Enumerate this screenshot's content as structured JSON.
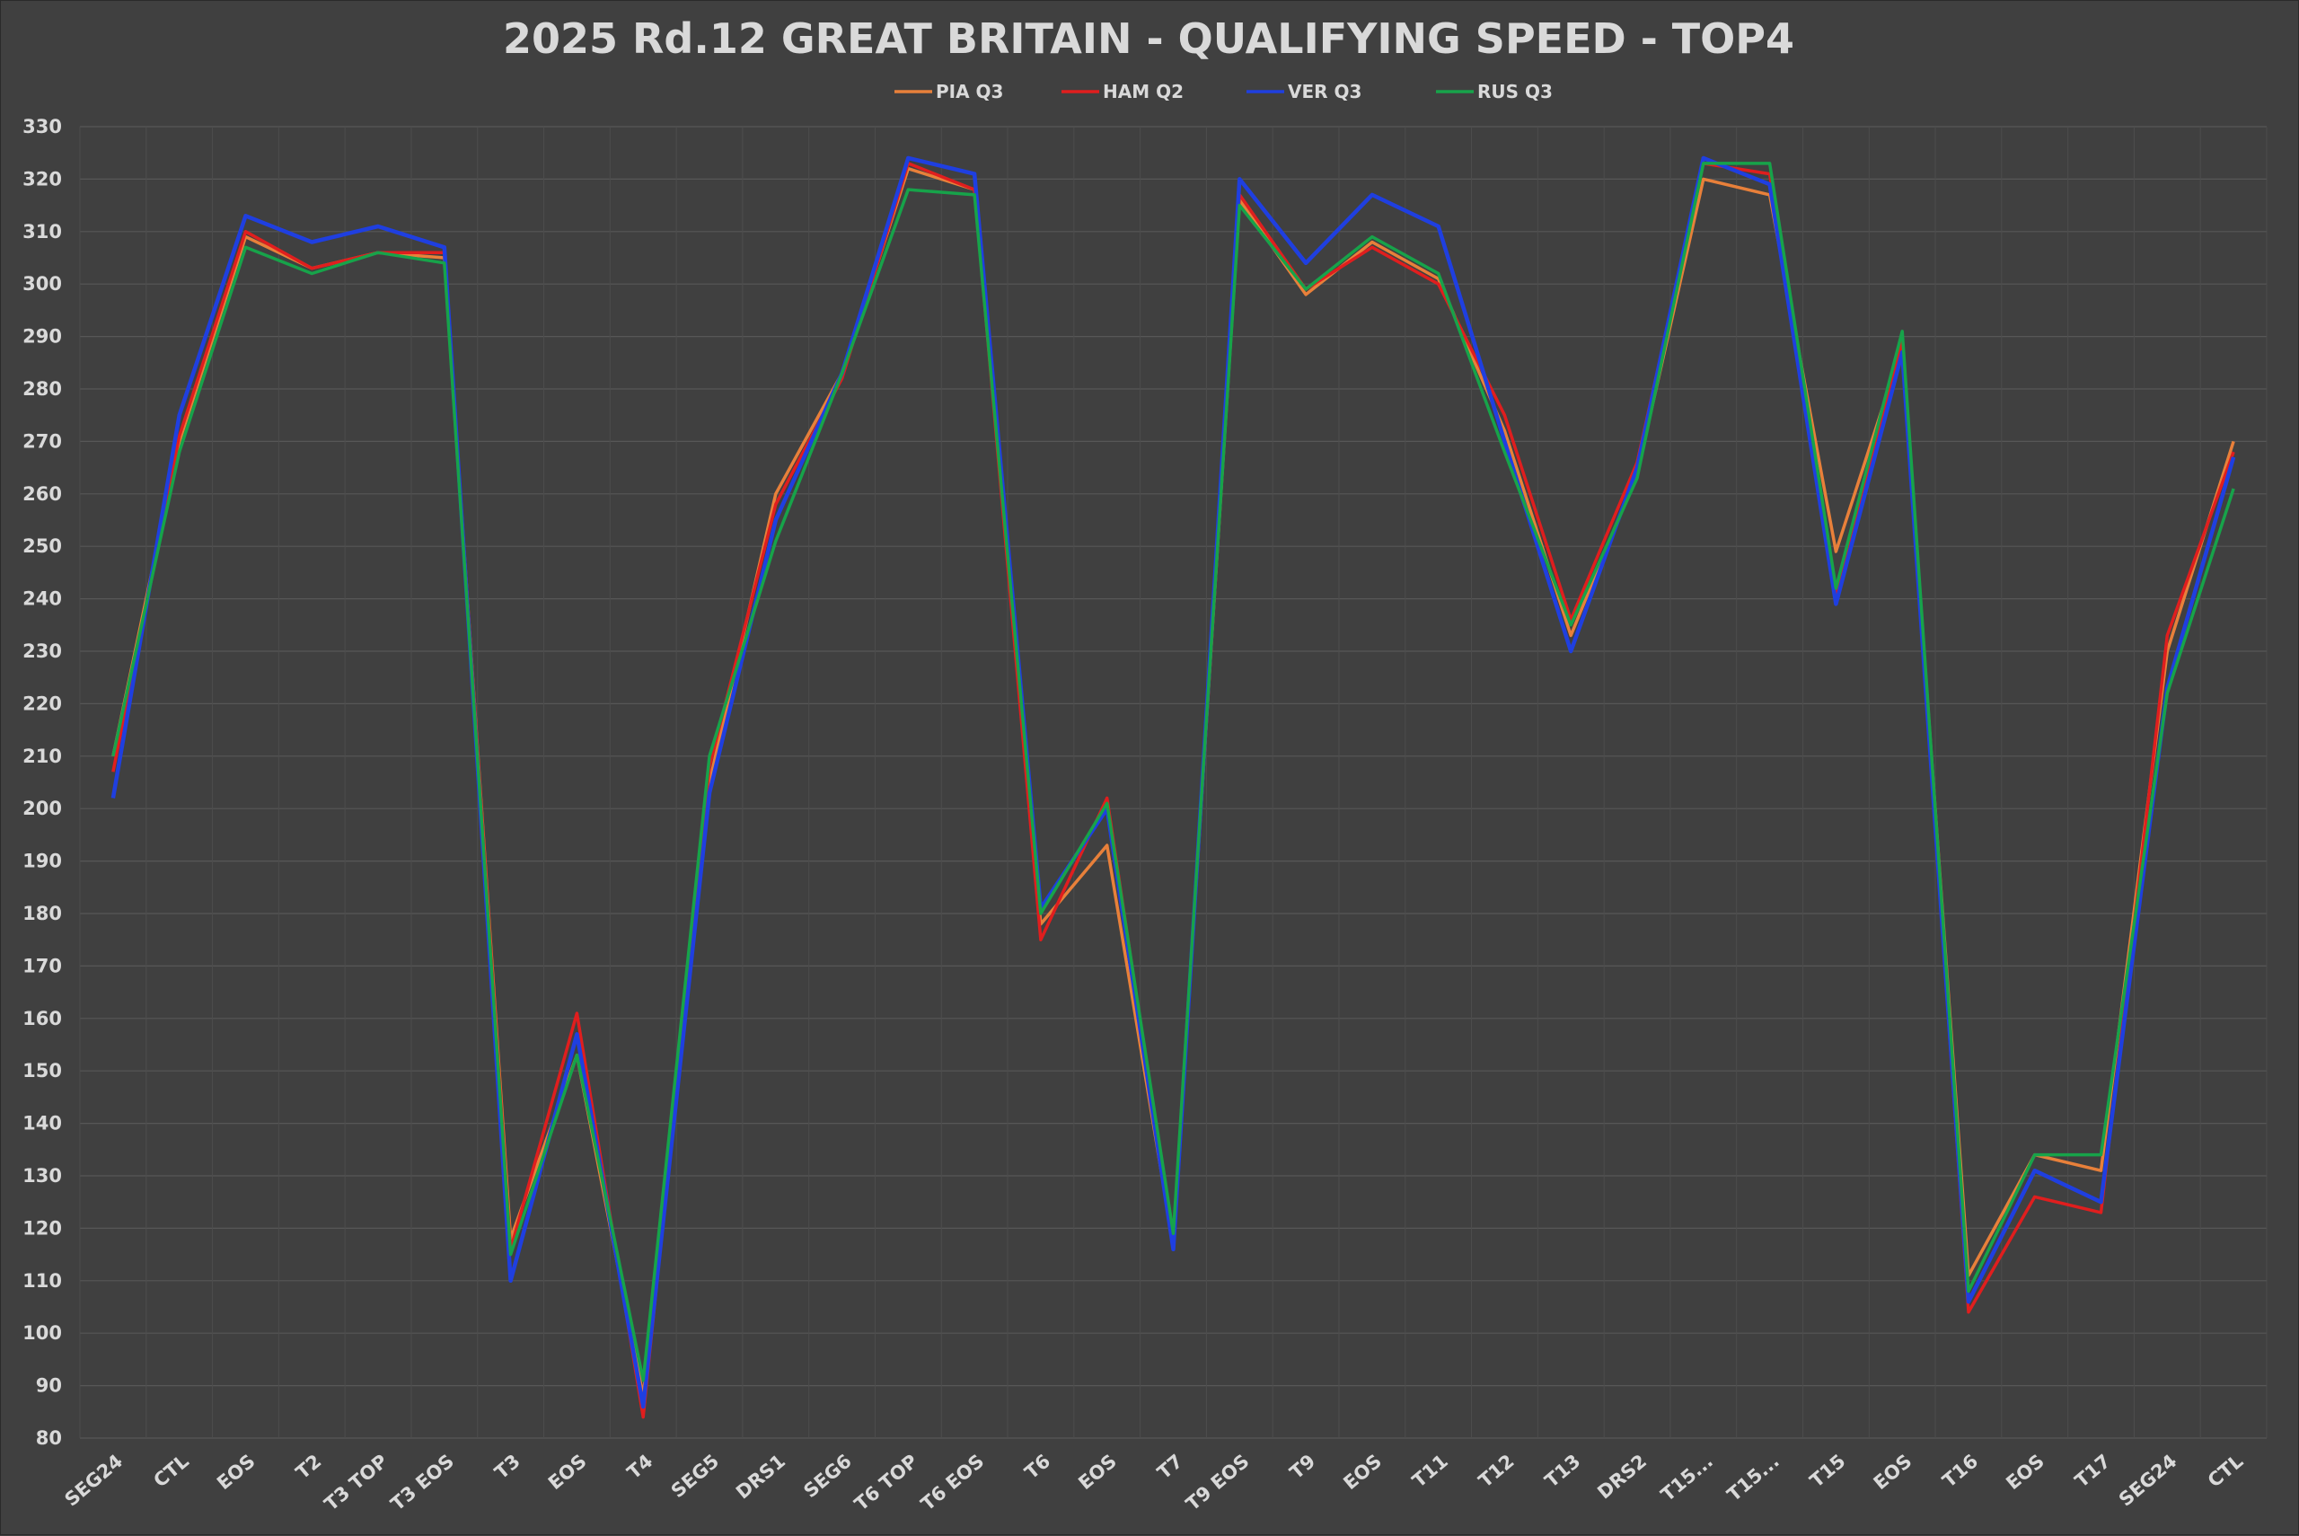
{
  "chart_data": {
    "type": "line",
    "title": "2025 Rd.12 GREAT BRITAIN - QUALIFYING SPEED - TOP4",
    "xlabel": "",
    "ylabel": "",
    "ylim": [
      80,
      330
    ],
    "yticks": [
      80,
      90,
      100,
      110,
      120,
      130,
      140,
      150,
      160,
      170,
      180,
      190,
      200,
      210,
      220,
      230,
      240,
      250,
      260,
      270,
      280,
      290,
      300,
      310,
      320,
      330
    ],
    "grid": true,
    "legend": "top-center",
    "categories": [
      "SEG24",
      "CTL",
      "EOS",
      "T2",
      "T3 TOP",
      "T3 EOS",
      "T3",
      "EOS",
      "T4",
      "SEG5",
      "DRS1",
      "SEG6",
      "T6 TOP",
      "T6 EOS",
      "T6",
      "EOS",
      "T7",
      "T9 EOS",
      "T9",
      "EOS",
      "T11",
      "T12",
      "T13",
      "DRS2",
      "T15...",
      "T15...",
      "T15",
      "EOS",
      "T16",
      "EOS",
      "T17",
      "SEG24",
      "CTL"
    ],
    "series": [
      {
        "name": "PIA Q3",
        "color": "#e8803a",
        "values": [
          210,
          270,
          309,
          303,
          306,
          305,
          118,
          153,
          88,
          205,
          260,
          283,
          322,
          318,
          178,
          193,
          117,
          316,
          298,
          308,
          301,
          272,
          233,
          264,
          320,
          317,
          249,
          288,
          111,
          134,
          131,
          230,
          270
        ]
      },
      {
        "name": "HAM Q2",
        "color": "#e01e1e",
        "values": [
          207,
          271,
          310,
          303,
          306,
          306,
          116,
          161,
          84,
          208,
          258,
          282,
          323,
          318,
          175,
          202,
          117,
          317,
          299,
          307,
          300,
          275,
          236,
          266,
          323,
          321,
          241,
          289,
          104,
          126,
          123,
          233,
          268
        ]
      },
      {
        "name": "VER Q3",
        "color": "#1f3fe0",
        "values": [
          202,
          275,
          313,
          308,
          311,
          307,
          110,
          157,
          86,
          203,
          255,
          283,
          324,
          321,
          181,
          200,
          116,
          320,
          304,
          317,
          311,
          270,
          230,
          265,
          324,
          319,
          239,
          287,
          106,
          131,
          125,
          223,
          267
        ]
      },
      {
        "name": "RUS Q3",
        "color": "#17a34a",
        "values": [
          210,
          268,
          307,
          302,
          306,
          304,
          115,
          153,
          91,
          210,
          251,
          283,
          318,
          317,
          180,
          201,
          119,
          315,
          299,
          309,
          302,
          268,
          235,
          263,
          323,
          323,
          242,
          291,
          108,
          134,
          134,
          222,
          261
        ]
      }
    ]
  }
}
